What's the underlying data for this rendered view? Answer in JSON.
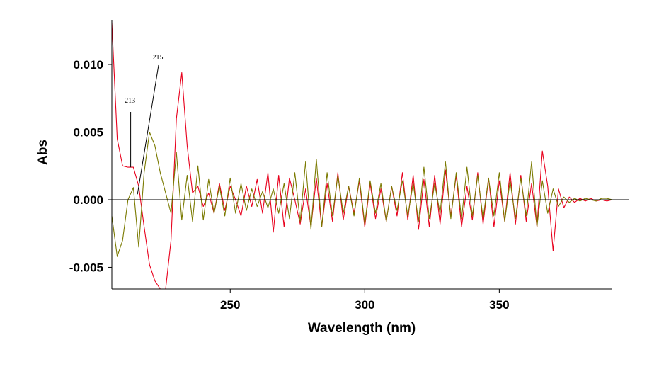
{
  "chart_data": {
    "type": "line",
    "title": "",
    "xlabel": "Wavelength (nm)",
    "ylabel": "Abs",
    "xlim": [
      206,
      392
    ],
    "ylim": [
      -0.0066,
      0.0133
    ],
    "x_ticks": [
      250,
      300,
      350
    ],
    "x_tick_labels": [
      "250",
      "300",
      "350"
    ],
    "y_ticks": [
      0.01,
      0.005,
      0.0,
      -0.005
    ],
    "y_tick_labels": [
      "0.010",
      "0.005",
      "0.000",
      "-0.005"
    ],
    "grid": false,
    "legend": "none",
    "zero_line": true,
    "annotations": [
      {
        "text": "213",
        "x": 213,
        "y": 0.0024
      },
      {
        "text": "215",
        "x": 215,
        "y": 0.0004
      }
    ],
    "series": [
      {
        "color": "#e8001c",
        "x": [
          206,
          208,
          210,
          212,
          214,
          216,
          218,
          220,
          222,
          224,
          226,
          228,
          230,
          232,
          234,
          236,
          238,
          240,
          242,
          244,
          246,
          248,
          250,
          252,
          254,
          256,
          258,
          260,
          262,
          264,
          266,
          268,
          270,
          272,
          274,
          276,
          278,
          280,
          282,
          284,
          286,
          288,
          290,
          292,
          294,
          296,
          298,
          300,
          302,
          304,
          306,
          308,
          310,
          312,
          314,
          316,
          318,
          320,
          322,
          324,
          326,
          328,
          330,
          332,
          334,
          336,
          338,
          340,
          342,
          344,
          346,
          348,
          350,
          352,
          354,
          356,
          358,
          360,
          362,
          364,
          366,
          368,
          370,
          372,
          374,
          376,
          378,
          380,
          382,
          384,
          386,
          388,
          390,
          392
        ],
        "y": [
          0.0131,
          0.0045,
          0.0025,
          0.0024,
          0.0024,
          0.001,
          -0.002,
          -0.0048,
          -0.006,
          -0.0066,
          -0.0066,
          -0.003,
          0.006,
          0.0094,
          0.004,
          0.0005,
          0.001,
          -0.0005,
          0.0005,
          -0.001,
          0.0012,
          -0.0008,
          0.001,
          0.0,
          -0.0012,
          0.001,
          -0.0005,
          0.0015,
          -0.001,
          0.002,
          -0.0024,
          0.0018,
          -0.002,
          0.0016,
          0.0,
          -0.0018,
          0.0008,
          -0.002,
          0.0016,
          -0.002,
          0.0012,
          -0.0016,
          0.002,
          -0.0015,
          0.001,
          -0.001,
          0.0014,
          -0.002,
          0.0012,
          -0.0014,
          0.0008,
          -0.0016,
          0.001,
          -0.0012,
          0.002,
          -0.0015,
          0.0018,
          -0.0022,
          0.0015,
          -0.002,
          0.0018,
          -0.0018,
          0.0022,
          -0.0012,
          0.0018,
          -0.002,
          0.001,
          -0.0015,
          0.002,
          -0.0018,
          0.0016,
          -0.002,
          0.0014,
          -0.0016,
          0.002,
          -0.0018,
          0.0018,
          -0.0016,
          0.0012,
          -0.002,
          0.0036,
          0.001,
          -0.0038,
          0.0008,
          -0.0006,
          0.0002,
          -0.0002,
          0.0001,
          -0.0001,
          0.0001,
          -0.0001,
          0.0,
          -0.0001,
          0.0
        ]
      },
      {
        "color": "#7a7a00",
        "x": [
          206,
          208,
          210,
          212,
          214,
          216,
          218,
          220,
          222,
          224,
          226,
          228,
          230,
          232,
          234,
          236,
          238,
          240,
          242,
          244,
          246,
          248,
          250,
          252,
          254,
          256,
          258,
          260,
          262,
          264,
          266,
          268,
          270,
          272,
          274,
          276,
          278,
          280,
          282,
          284,
          286,
          288,
          290,
          292,
          294,
          296,
          298,
          300,
          302,
          304,
          306,
          308,
          310,
          312,
          314,
          316,
          318,
          320,
          322,
          324,
          326,
          328,
          330,
          332,
          334,
          336,
          338,
          340,
          342,
          344,
          346,
          348,
          350,
          352,
          354,
          356,
          358,
          360,
          362,
          364,
          366,
          368,
          370,
          372,
          374,
          376,
          378,
          380,
          382,
          384,
          386,
          388,
          390,
          392
        ],
        "y": [
          -0.0012,
          -0.0042,
          -0.003,
          0.0,
          0.0009,
          -0.0035,
          0.002,
          0.005,
          0.004,
          0.002,
          0.0005,
          -0.001,
          0.0035,
          -0.0015,
          0.0018,
          -0.0016,
          0.0025,
          -0.0015,
          0.0015,
          -0.001,
          0.001,
          -0.0012,
          0.0016,
          -0.001,
          0.0012,
          -0.0008,
          0.0008,
          -0.0005,
          0.0006,
          -0.0006,
          0.0008,
          -0.001,
          0.0012,
          -0.0014,
          0.002,
          -0.0016,
          0.0028,
          -0.0022,
          0.003,
          -0.002,
          0.002,
          -0.0012,
          0.0018,
          -0.001,
          0.001,
          -0.0012,
          0.0016,
          -0.0018,
          0.0014,
          -0.001,
          0.0012,
          -0.0016,
          0.001,
          -0.0008,
          0.0014,
          -0.0012,
          0.0012,
          -0.0016,
          0.0024,
          -0.0014,
          0.0012,
          -0.001,
          0.0028,
          -0.0014,
          0.002,
          -0.0014,
          0.0024,
          -0.0012,
          0.0018,
          -0.0014,
          0.0016,
          -0.0012,
          0.002,
          -0.0016,
          0.0014,
          -0.0014,
          0.0016,
          -0.0012,
          0.0028,
          -0.002,
          0.0014,
          -0.001,
          0.0008,
          -0.0005,
          0.0002,
          -0.0002,
          0.0001,
          -0.0001,
          0.0001,
          0.0,
          -0.0001,
          0.0001,
          0.0001,
          0.0
        ]
      }
    ]
  }
}
